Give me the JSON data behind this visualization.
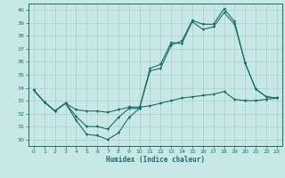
{
  "xlabel": "Humidex (Indice chaleur)",
  "xlim": [
    -0.5,
    23.5
  ],
  "ylim": [
    29.5,
    40.5
  ],
  "yticks": [
    30,
    31,
    32,
    33,
    34,
    35,
    36,
    37,
    38,
    39,
    40
  ],
  "xticks": [
    0,
    1,
    2,
    3,
    4,
    5,
    6,
    7,
    8,
    9,
    10,
    11,
    12,
    13,
    14,
    15,
    16,
    17,
    18,
    19,
    20,
    21,
    22,
    23
  ],
  "bg_color": "#c8e8e8",
  "grid_color": "#a8cccc",
  "line_color": "#1a6b6b",
  "line1_y": [
    33.8,
    32.9,
    32.2,
    32.8,
    31.5,
    30.4,
    30.3,
    30.0,
    30.5,
    31.7,
    32.4,
    35.3,
    35.5,
    37.3,
    37.6,
    39.2,
    38.9,
    38.9,
    40.1,
    39.1,
    35.9,
    33.9,
    33.3,
    33.2
  ],
  "line2_y": [
    33.8,
    32.9,
    32.2,
    32.8,
    31.8,
    31.0,
    31.0,
    30.8,
    31.7,
    32.4,
    32.4,
    35.5,
    35.8,
    37.5,
    37.4,
    39.1,
    38.5,
    38.7,
    39.8,
    38.9,
    35.9,
    33.9,
    33.3,
    33.2
  ],
  "line3_y": [
    33.8,
    32.9,
    32.2,
    32.8,
    32.3,
    32.2,
    32.2,
    32.1,
    32.3,
    32.5,
    32.5,
    32.6,
    32.8,
    33.0,
    33.2,
    33.3,
    33.4,
    33.5,
    33.7,
    33.1,
    33.0,
    33.0,
    33.1,
    33.2
  ]
}
